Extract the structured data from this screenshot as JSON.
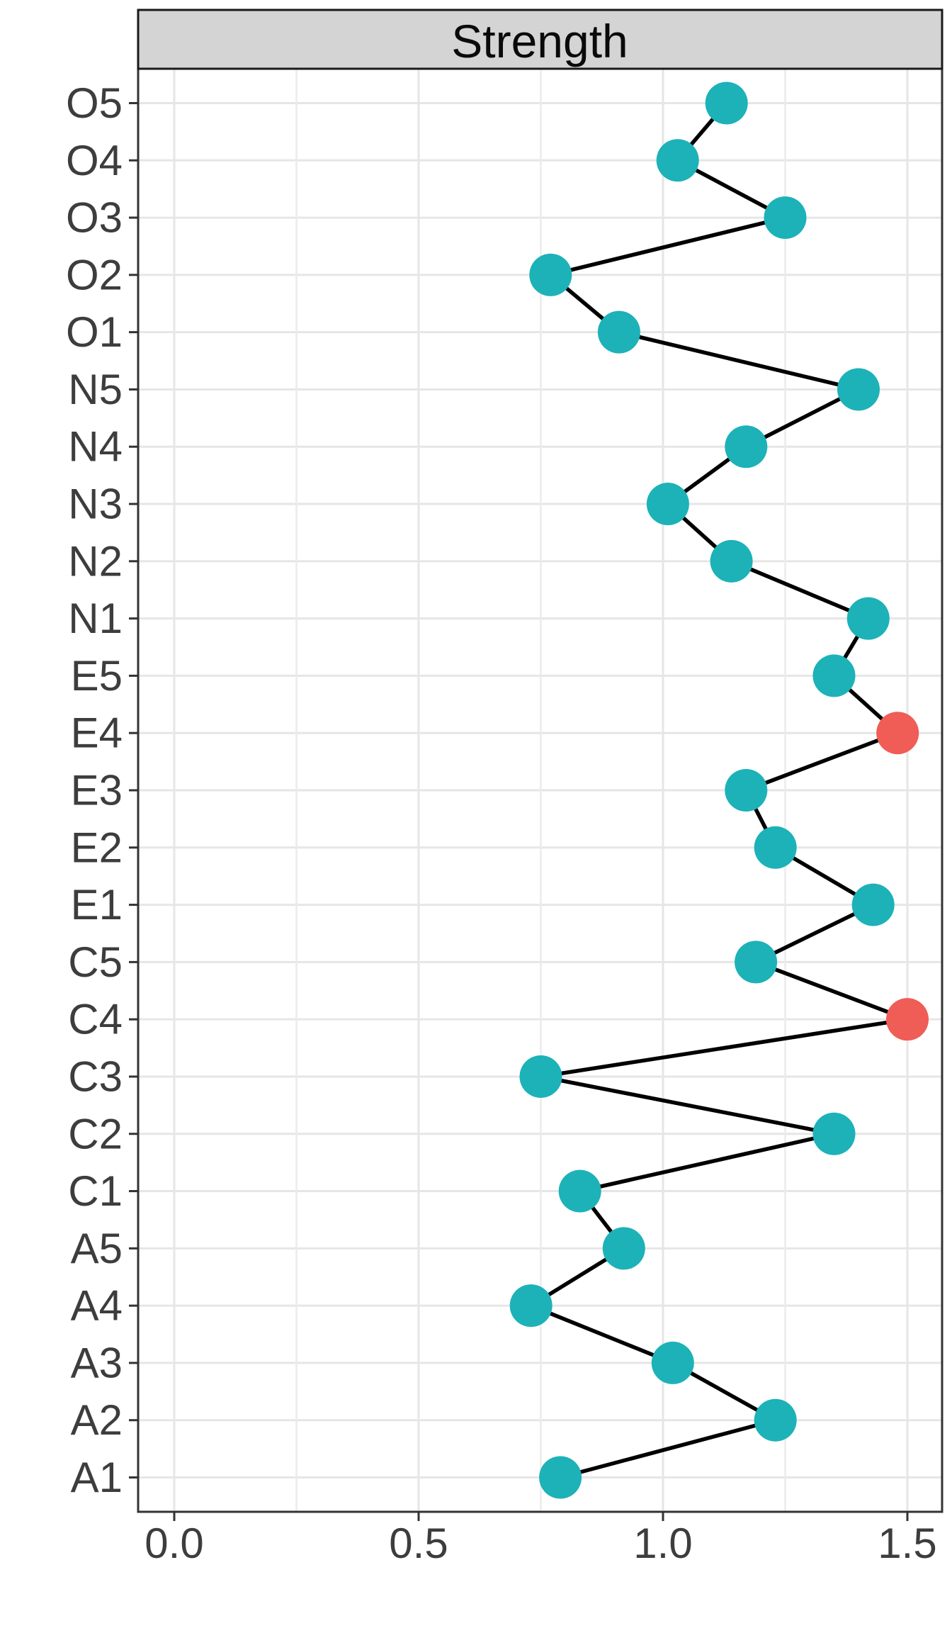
{
  "chart_data": {
    "type": "line",
    "subtype": "horizontal-dot-line-plot",
    "title": "Strength",
    "legend": "none",
    "grid": "on",
    "categories_top_to_bottom": [
      "O5",
      "O4",
      "O3",
      "O2",
      "O1",
      "N5",
      "N4",
      "N3",
      "N2",
      "N1",
      "E5",
      "E4",
      "E3",
      "E2",
      "E1",
      "C5",
      "C4",
      "C3",
      "C2",
      "C1",
      "A5",
      "A4",
      "A3",
      "A2",
      "A1"
    ],
    "values_top_to_bottom": [
      1.13,
      1.03,
      1.25,
      0.77,
      0.91,
      1.4,
      1.17,
      1.01,
      1.14,
      1.42,
      1.35,
      1.48,
      1.17,
      1.23,
      1.43,
      1.19,
      1.5,
      0.75,
      1.35,
      0.83,
      0.92,
      0.73,
      1.02,
      1.23,
      0.79
    ],
    "highlighted_categories": [
      "E4",
      "C4"
    ],
    "xlim": [
      0,
      1.5
    ],
    "x_major_ticks": [
      0,
      0.5,
      1,
      1.5
    ],
    "x_major_tick_labels": [
      "0.0",
      "0.5",
      "1.0",
      "1.5"
    ],
    "x_minor_ticks": [
      0.25,
      0.75,
      1.25
    ],
    "colors": {
      "point": "#1cb2b8",
      "highlight": "#ef5d56",
      "line": "#000000",
      "grid_major": "#e6e6e6",
      "grid_minor": "#ebebeb",
      "panel_border": "#333333",
      "tick_mark": "#333333",
      "strip_background": "#d4d4d4",
      "strip_border": "#1a1a1a",
      "axis_text": "#3d3d3d",
      "title_text": "#0a0a0a"
    }
  }
}
